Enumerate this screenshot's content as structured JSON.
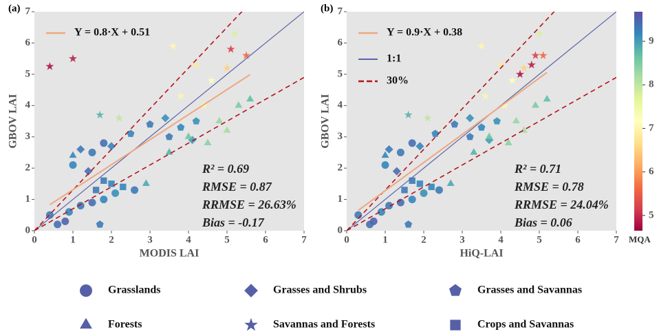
{
  "chart_data": [
    {
      "type": "scatter",
      "panel": "(a)",
      "xlabel": "MODIS LAI",
      "ylabel": "GBOV LAI",
      "xlim": [
        0,
        7
      ],
      "ylim": [
        0,
        7
      ],
      "xticks": [
        0,
        1,
        2,
        3,
        4,
        5,
        6,
        7
      ],
      "yticks": [
        0,
        1,
        2,
        3,
        4,
        5,
        6,
        7
      ],
      "fit": {
        "label": "Y = 0.8·X + 0.51",
        "slope": 0.8,
        "intercept": 0.51,
        "color": "#eea77f"
      },
      "ref_lines": {
        "color_1to1": "#5a64a8",
        "color_band": "#b5121b",
        "band": 0.3
      },
      "stats": [
        "R² = 0.69",
        "RMSE = 0.87",
        "RRMSE = 26.63%",
        "Bias = -0.17"
      ],
      "series": [
        {
          "marker": "circle",
          "x": [
            0.4,
            0.6,
            0.9,
            1.2,
            1.5,
            1.8,
            2.1,
            2.6,
            1.0,
            1.5,
            1.8,
            0.8
          ],
          "y": [
            0.5,
            0.2,
            0.6,
            0.8,
            0.9,
            1.0,
            1.2,
            1.3,
            2.1,
            2.5,
            2.8,
            0.3
          ],
          "mqa": [
            9.3,
            9.4,
            9.2,
            9.3,
            9.4,
            9.2,
            9.1,
            9.3,
            9.2,
            9.3,
            9.4,
            9.5
          ]
        },
        {
          "marker": "diamond",
          "x": [
            1.2,
            2.0,
            3.4,
            4.1,
            1.4
          ],
          "y": [
            2.6,
            2.7,
            3.6,
            2.9,
            1.9
          ],
          "mqa": [
            9.3,
            9.2,
            9.1,
            9.0,
            9.4
          ]
        },
        {
          "marker": "pentagon",
          "x": [
            3.5,
            3.8,
            4.2,
            3.0,
            2.5,
            1.7
          ],
          "y": [
            3.0,
            3.3,
            3.5,
            3.4,
            3.1,
            0.2
          ],
          "mqa": [
            9.3,
            9.2,
            9.1,
            9.3,
            9.2,
            9.3
          ]
        },
        {
          "marker": "triangle",
          "x": [
            3.5,
            4.0,
            4.5,
            5.0,
            5.3,
            5.6,
            4.8,
            1.0,
            2.9
          ],
          "y": [
            2.5,
            3.0,
            2.8,
            3.2,
            4.0,
            4.2,
            3.5,
            2.4,
            1.5
          ],
          "mqa": [
            8.8,
            8.6,
            8.4,
            8.2,
            8.5,
            8.7,
            8.3,
            9.2,
            8.9
          ]
        },
        {
          "marker": "star",
          "x": [
            0.4,
            1.0,
            3.6,
            4.2,
            4.6,
            5.0,
            5.2,
            5.5,
            3.8,
            4.4,
            2.2,
            1.7,
            5.1
          ],
          "y": [
            5.25,
            5.5,
            5.9,
            5.3,
            4.8,
            5.2,
            6.3,
            5.6,
            4.3,
            4.0,
            3.6,
            3.7,
            5.8
          ],
          "mqa": [
            4.8,
            4.9,
            7.0,
            6.8,
            7.2,
            6.5,
            7.8,
            5.6,
            7.4,
            7.0,
            8.0,
            8.8,
            5.2
          ]
        },
        {
          "marker": "square",
          "x": [
            1.6,
            2.0,
            1.8,
            2.3
          ],
          "y": [
            1.3,
            1.5,
            1.6,
            1.4
          ],
          "mqa": [
            9.3,
            9.2,
            9.3,
            9.2
          ]
        }
      ]
    },
    {
      "type": "scatter",
      "panel": "(b)",
      "xlabel": "HiQ-LAI",
      "ylabel": "GBOV LAI",
      "xlim": [
        0,
        7
      ],
      "ylim": [
        0,
        7
      ],
      "xticks": [
        0,
        1,
        2,
        3,
        4,
        5,
        6,
        7
      ],
      "yticks": [
        0,
        1,
        2,
        3,
        4,
        5,
        6,
        7
      ],
      "fit": {
        "label": "Y = 0.9·X + 0.38",
        "slope": 0.9,
        "intercept": 0.38,
        "color": "#eea77f"
      },
      "ref_lines": {
        "color_1to1": "#5a64a8",
        "color_band": "#b5121b",
        "band": 0.3
      },
      "ref_labels": {
        "one_to_one": "1:1",
        "band": "30%"
      },
      "stats": [
        "R² = 0.71",
        "RMSE = 0.78",
        "RRMSE = 24.04%",
        "Bias = 0.06"
      ],
      "series": [
        {
          "marker": "circle",
          "x": [
            0.3,
            0.6,
            0.9,
            1.1,
            1.4,
            1.7,
            2.0,
            2.4,
            1.0,
            1.4,
            1.7,
            0.7
          ],
          "y": [
            0.5,
            0.2,
            0.6,
            0.8,
            0.9,
            1.0,
            1.2,
            1.3,
            2.1,
            2.5,
            2.8,
            0.3
          ],
          "mqa": [
            9.3,
            9.4,
            9.2,
            9.3,
            9.4,
            9.2,
            9.1,
            9.3,
            9.2,
            9.3,
            9.4,
            9.5
          ]
        },
        {
          "marker": "diamond",
          "x": [
            1.1,
            1.9,
            3.2,
            3.7,
            1.3
          ],
          "y": [
            2.6,
            2.7,
            3.6,
            2.9,
            1.9
          ],
          "mqa": [
            9.3,
            9.2,
            9.1,
            9.0,
            9.4
          ]
        },
        {
          "marker": "pentagon",
          "x": [
            3.2,
            3.5,
            3.9,
            2.8,
            2.3,
            1.6
          ],
          "y": [
            3.0,
            3.3,
            3.5,
            3.4,
            3.1,
            0.2
          ],
          "mqa": [
            9.3,
            9.2,
            9.1,
            9.3,
            9.2,
            9.3
          ]
        },
        {
          "marker": "triangle",
          "x": [
            3.3,
            3.7,
            4.2,
            4.6,
            4.9,
            5.2,
            4.4,
            1.0,
            2.7
          ],
          "y": [
            2.5,
            3.0,
            2.8,
            3.2,
            4.0,
            4.2,
            3.5,
            2.4,
            1.5
          ],
          "mqa": [
            8.8,
            8.6,
            8.4,
            8.2,
            8.5,
            8.7,
            8.3,
            9.2,
            8.9
          ]
        },
        {
          "marker": "star",
          "x": [
            4.5,
            4.8,
            3.5,
            4.0,
            4.3,
            4.6,
            5.0,
            5.1,
            3.6,
            4.1,
            2.1,
            1.6,
            4.9
          ],
          "y": [
            5.0,
            5.3,
            5.9,
            5.3,
            4.8,
            5.2,
            6.3,
            5.6,
            4.3,
            4.0,
            3.6,
            3.7,
            5.6
          ],
          "mqa": [
            4.8,
            4.9,
            7.0,
            6.8,
            7.2,
            6.5,
            7.8,
            5.6,
            7.4,
            7.0,
            8.0,
            8.8,
            5.2
          ]
        },
        {
          "marker": "square",
          "x": [
            1.5,
            1.9,
            1.7,
            2.2
          ],
          "y": [
            1.3,
            1.5,
            1.6,
            1.4
          ],
          "mqa": [
            9.3,
            9.2,
            9.3,
            9.2
          ]
        }
      ]
    }
  ],
  "legend": [
    {
      "name": "Grasslands",
      "marker": "circle"
    },
    {
      "name": "Grasses and Shrubs",
      "marker": "diamond"
    },
    {
      "name": "Grasses and Savannas",
      "marker": "pentagon"
    },
    {
      "name": "Forests",
      "marker": "triangle"
    },
    {
      "name": "Savannas and Forests",
      "marker": "star"
    },
    {
      "name": "Crops and Savannas",
      "marker": "square"
    }
  ],
  "legend_color": "#5560a6",
  "colorbar": {
    "label": "MQA",
    "lim": [
      4.65,
      9.68
    ],
    "ticks": [
      5,
      6,
      7,
      8,
      9
    ],
    "colormap": [
      "#9e0142",
      "#d53e4f",
      "#f46d43",
      "#fdae61",
      "#fee08b",
      "#ffffbf",
      "#e6f598",
      "#abdda4",
      "#66c2a5",
      "#3288bd",
      "#5e4fa2"
    ]
  }
}
